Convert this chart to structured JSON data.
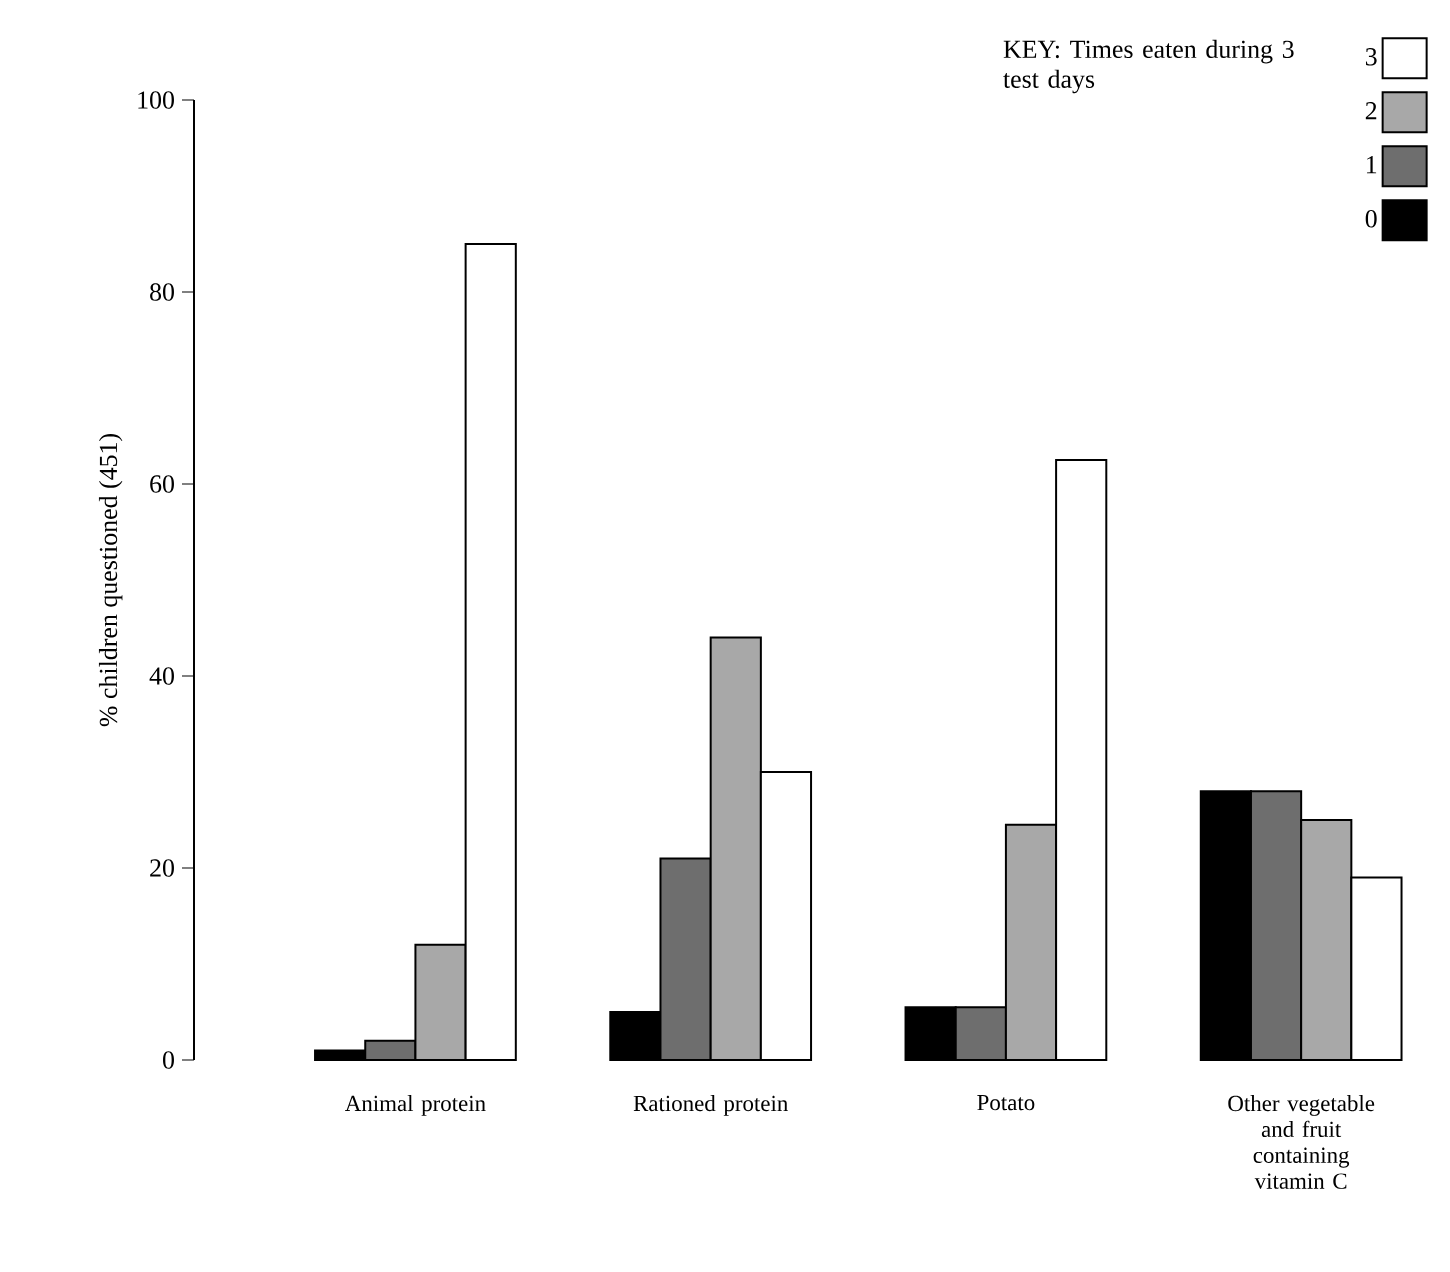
{
  "chart_data": {
    "type": "bar",
    "ylabel": "% children questioned (451)",
    "legend_title": "KEY: Times eaten during 3 test days",
    "categories": [
      "Animal protein",
      "Rationed protein",
      "Potato",
      "Other vegetable and fruit containing vitamin C"
    ],
    "series": [
      {
        "name": "0",
        "color": "#000000",
        "values": [
          1,
          5,
          5.5,
          28
        ]
      },
      {
        "name": "1",
        "color": "#6e6e6e",
        "values": [
          2,
          21,
          5.5,
          28
        ]
      },
      {
        "name": "2",
        "color": "#a8a8a8",
        "values": [
          12,
          44,
          24.5,
          25
        ]
      },
      {
        "name": "3",
        "color": "#ffffff",
        "values": [
          85,
          30,
          62.5,
          19
        ]
      }
    ],
    "ylim": [
      0,
      100
    ],
    "yticks": [
      0,
      20,
      40,
      60,
      80,
      100
    ],
    "legend": "top right"
  }
}
